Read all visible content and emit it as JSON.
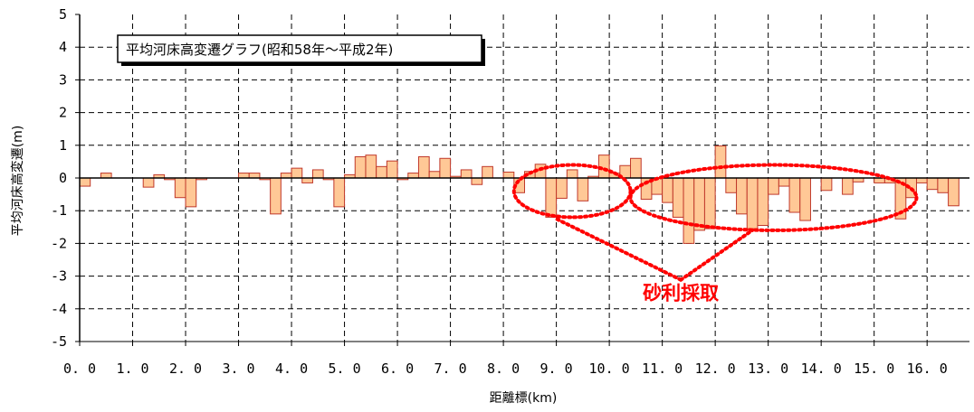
{
  "chart_data": {
    "type": "bar",
    "title": "平均河床高変遷グラフ(昭和58年～平成2年)",
    "xlabel": "距離標(km)",
    "ylabel": "平均河床高変遷(m)",
    "xlim": [
      0,
      16.8
    ],
    "ylim": [
      -5,
      5
    ],
    "x_ticks": [
      "0.0",
      "1.0",
      "2.0",
      "3.0",
      "4.0",
      "5.0",
      "6.0",
      "7.0",
      "8.0",
      "9.0",
      "10.0",
      "11.0",
      "12.0",
      "13.0",
      "14.0",
      "15.0",
      "16.0"
    ],
    "y_ticks": [
      "5",
      "4",
      "3",
      "2",
      "1",
      "0",
      "-1",
      "-2",
      "-3",
      "-4",
      "-5"
    ],
    "grid": true,
    "bar_width_km": 0.2,
    "bar_color": "#ffc896",
    "bar_edge_color": "#c0392b",
    "x": [
      0.0,
      0.2,
      0.4,
      0.6,
      0.8,
      1.0,
      1.2,
      1.4,
      1.6,
      1.8,
      2.0,
      2.2,
      2.4,
      2.6,
      2.8,
      3.0,
      3.2,
      3.4,
      3.6,
      3.8,
      4.0,
      4.2,
      4.4,
      4.6,
      4.8,
      5.0,
      5.2,
      5.4,
      5.6,
      5.8,
      6.0,
      6.2,
      6.4,
      6.6,
      6.8,
      7.0,
      7.2,
      7.4,
      7.6,
      7.8,
      8.0,
      8.2,
      8.4,
      8.6,
      8.8,
      9.0,
      9.2,
      9.4,
      9.6,
      9.8,
      10.0,
      10.2,
      10.4,
      10.6,
      10.8,
      11.0,
      11.2,
      11.4,
      11.6,
      11.8,
      12.0,
      12.2,
      12.4,
      12.6,
      12.8,
      13.0,
      13.2,
      13.4,
      13.6,
      13.8,
      14.0,
      14.2,
      14.4,
      14.6,
      14.8,
      15.0,
      15.2,
      15.4,
      15.6,
      15.8,
      16.0,
      16.2,
      16.4,
      16.6
    ],
    "values": [
      -0.25,
      0.0,
      0.15,
      0.0,
      0.0,
      0.0,
      -0.28,
      0.1,
      -0.05,
      -0.6,
      -0.88,
      -0.05,
      0.0,
      0.0,
      0.0,
      0.15,
      0.15,
      -0.05,
      -1.1,
      0.15,
      0.3,
      -0.15,
      0.25,
      -0.05,
      -0.88,
      0.1,
      0.65,
      0.7,
      0.35,
      0.52,
      -0.05,
      0.15,
      0.65,
      0.2,
      0.6,
      0.05,
      0.25,
      -0.2,
      0.35,
      0.0,
      0.18,
      -0.45,
      0.2,
      0.42,
      -1.2,
      -0.62,
      0.25,
      -0.7,
      0.05,
      0.7,
      0.15,
      0.38,
      0.6,
      -0.65,
      -0.5,
      -0.75,
      -1.2,
      -2.0,
      -1.6,
      -1.55,
      0.98,
      -0.45,
      -1.1,
      -1.55,
      -1.45,
      -0.5,
      -0.25,
      -1.05,
      -1.3,
      0.0,
      -0.38,
      0.0,
      -0.5,
      -0.12,
      0.0,
      -0.15,
      -0.15,
      -1.25,
      -0.6,
      -0.15,
      -0.35,
      -0.45,
      -0.85,
      0.0
    ],
    "annotations": [
      {
        "text": "砂利採取",
        "color": "#ff0000",
        "x": 11.35,
        "y": -3.5,
        "ellipses": [
          {
            "cx": 9.3,
            "cy": -0.4,
            "rx": 1.1,
            "ry": 0.8
          },
          {
            "cx": 13.1,
            "cy": -0.6,
            "rx": 2.7,
            "ry": 1.0
          }
        ],
        "leader_targets": [
          {
            "x": 9.0,
            "y": -1.25
          },
          {
            "x": 12.7,
            "y": -1.6
          }
        ]
      }
    ]
  }
}
